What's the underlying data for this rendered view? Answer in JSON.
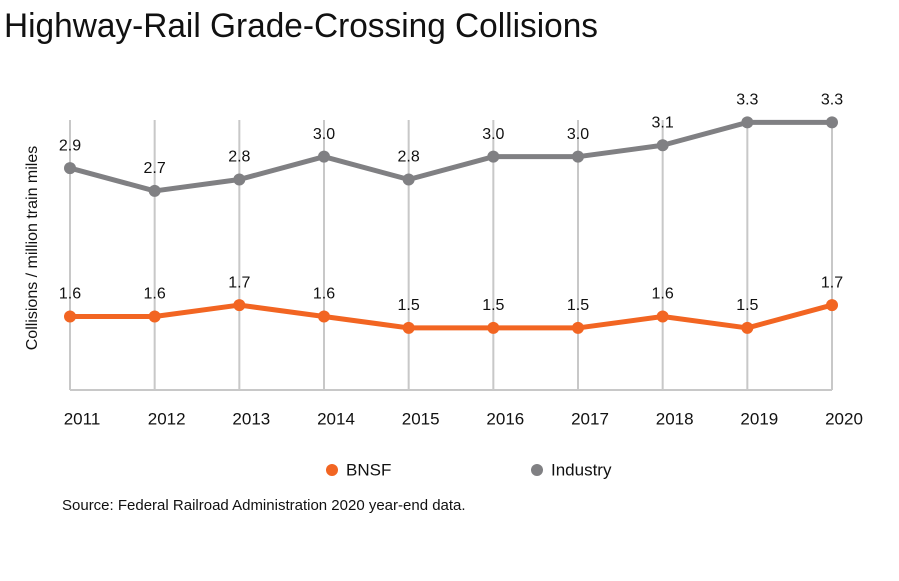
{
  "chart_data": {
    "type": "line",
    "title": "Highway-Rail Grade-Crossing Collisions",
    "y_label": "Collisions / million train miles",
    "source": "Source: Federal Railroad Administration 2020 year-end data.",
    "categories": [
      "2011",
      "2012",
      "2013",
      "2014",
      "2015",
      "2016",
      "2017",
      "2018",
      "2019",
      "2020"
    ],
    "series": [
      {
        "name": "BNSF",
        "color": "#f26522",
        "values": [
          1.6,
          1.6,
          1.7,
          1.6,
          1.5,
          1.5,
          1.5,
          1.6,
          1.5,
          1.7
        ],
        "value_labels": [
          "1.6",
          "1.6",
          "1.7",
          "1.6",
          "1.5",
          "1.5",
          "1.5",
          "1.6",
          "1.5",
          "1.7"
        ]
      },
      {
        "name": "Industry",
        "color": "#808083",
        "values": [
          2.9,
          2.7,
          2.8,
          3.0,
          2.8,
          3.0,
          3.0,
          3.1,
          3.3,
          3.3
        ],
        "value_labels": [
          "2.9",
          "2.7",
          "2.8",
          "3.0",
          "2.8",
          "3.0",
          "3.0",
          "3.1",
          "3.3",
          "3.3"
        ]
      }
    ],
    "ylim": [
      1.0,
      3.4
    ],
    "grid": true
  }
}
